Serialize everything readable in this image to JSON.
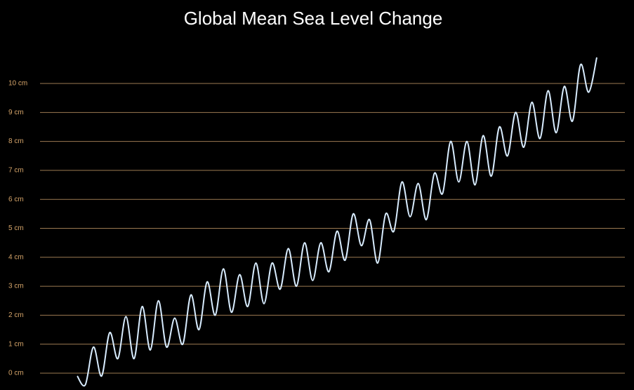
{
  "chart_data": {
    "type": "line",
    "title": "Global Mean Sea Level Change",
    "categories": [
      null,
      null,
      null,
      null,
      null,
      null,
      null,
      null,
      null,
      null,
      null,
      null,
      null,
      null,
      null,
      null,
      null,
      null,
      null,
      null,
      null,
      null,
      null,
      null,
      null,
      null,
      null,
      null,
      null,
      null,
      null,
      null,
      null,
      null,
      null,
      null,
      null,
      null,
      null,
      null,
      null,
      null,
      null,
      null,
      null,
      null,
      null,
      null,
      null,
      null,
      null,
      null,
      null,
      null,
      null,
      null,
      null,
      null,
      null,
      null,
      null,
      null,
      null,
      null,
      null
    ],
    "series": [
      {
        "color": "#d8ecff",
        "values": [
          -0.1,
          -0.4,
          0.9,
          -0.1,
          1.4,
          0.5,
          1.95,
          0.5,
          2.3,
          0.8,
          2.5,
          0.9,
          1.9,
          1.0,
          2.7,
          1.5,
          3.15,
          2.0,
          3.6,
          2.1,
          3.4,
          2.3,
          3.8,
          2.4,
          3.8,
          2.9,
          4.3,
          3.0,
          4.5,
          3.2,
          4.5,
          3.5,
          4.9,
          3.9,
          5.5,
          4.4,
          5.3,
          3.8,
          5.5,
          4.9,
          6.6,
          5.4,
          6.55,
          5.3,
          6.9,
          6.2,
          8.0,
          6.6,
          8.0,
          6.5,
          8.2,
          6.8,
          8.5,
          7.5,
          9.0,
          7.8,
          9.35,
          8.1,
          9.75,
          8.3,
          9.9,
          8.7,
          10.65,
          9.7,
          10.9
        ]
      }
    ],
    "ylim": [
      -0.5,
      11.1
    ],
    "yticks": [
      {
        "value": 0,
        "label": "0 cm"
      },
      {
        "value": 1,
        "label": "1 cm"
      },
      {
        "value": 2,
        "label": "2 cm"
      },
      {
        "value": 3,
        "label": "3 cm"
      },
      {
        "value": 4,
        "label": "4 cm"
      },
      {
        "value": 5,
        "label": "5 cm"
      },
      {
        "value": 6,
        "label": "6 cm"
      },
      {
        "value": 7,
        "label": "7 cm"
      },
      {
        "value": 8,
        "label": "8 cm"
      },
      {
        "value": 9,
        "label": "9 cm"
      },
      {
        "value": 10,
        "label": "10 cm"
      }
    ],
    "grid": true,
    "grid_color": "#9c7a52",
    "background": "#000000"
  }
}
